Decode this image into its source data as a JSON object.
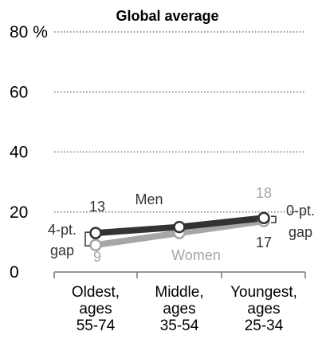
{
  "chart_data": {
    "type": "line",
    "title": "Global average",
    "categories": [
      "Oldest, ages 55-74",
      "Middle, ages 35-54",
      "Youngest, ages 25-34"
    ],
    "x_tick_lines": [
      [
        "Oldest,",
        "ages",
        "55-74"
      ],
      [
        "Middle,",
        "ages",
        "35-54"
      ],
      [
        "Youngest,",
        "ages",
        "25-34"
      ]
    ],
    "ylim": [
      0,
      80
    ],
    "yticks": [
      0,
      20,
      40,
      60,
      80
    ],
    "ytick_labels": [
      "0",
      "20",
      "40",
      "60",
      "80"
    ],
    "y_unit": "%",
    "grid": true,
    "series": [
      {
        "name": "Men",
        "values": [
          13,
          15,
          18
        ],
        "color": "#333333"
      },
      {
        "name": "Women",
        "values": [
          9,
          13,
          17
        ],
        "color": "#a6a6a6"
      }
    ],
    "data_labels": {
      "men_start": "13",
      "women_start": "9",
      "men_end": "18",
      "women_end": "17"
    },
    "annotations": {
      "left_gap": [
        "4-pt.",
        "gap"
      ],
      "right_gap": [
        "0-pt.",
        "gap"
      ]
    }
  }
}
